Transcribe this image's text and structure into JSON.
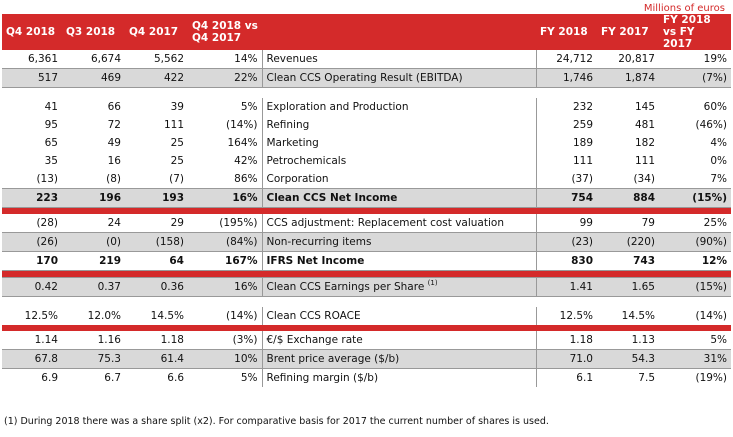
{
  "units_label": "Millions of euros",
  "headers": {
    "q4_2018": "Q4 2018",
    "q3_2018": "Q3 2018",
    "q4_2017": "Q4 2017",
    "q_var": "Q4 2018 vs Q4 2017",
    "label": "",
    "fy_2018": "FY 2018",
    "fy_2017": "FY 2017",
    "fy_var": "FY 2018 vs FY 2017"
  },
  "rows": [
    {
      "type": "data",
      "style": "plain",
      "q4_2018": "6,361",
      "q3_2018": "6,674",
      "q4_2017": "5,562",
      "q_var": "14%",
      "label": "Revenues",
      "fy_2018": "24,712",
      "fy_2017": "20,817",
      "fy_var": "19%"
    },
    {
      "type": "data",
      "style": "shaded",
      "q4_2018": "517",
      "q3_2018": "469",
      "q4_2017": "422",
      "q_var": "22%",
      "label": "Clean CCS Operating Result (EBITDA)",
      "fy_2018": "1,746",
      "fy_2017": "1,874",
      "fy_var": "(7%)"
    },
    {
      "type": "blank"
    },
    {
      "type": "data",
      "style": "plain",
      "q4_2018": "41",
      "q3_2018": "66",
      "q4_2017": "39",
      "q_var": "5%",
      "label": "Exploration and Production",
      "fy_2018": "232",
      "fy_2017": "145",
      "fy_var": "60%"
    },
    {
      "type": "data",
      "style": "plain",
      "q4_2018": "95",
      "q3_2018": "72",
      "q4_2017": "111",
      "q_var": "(14%)",
      "label": "Refining",
      "fy_2018": "259",
      "fy_2017": "481",
      "fy_var": "(46%)"
    },
    {
      "type": "data",
      "style": "plain",
      "q4_2018": "65",
      "q3_2018": "49",
      "q4_2017": "25",
      "q_var": "164%",
      "label": "Marketing",
      "fy_2018": "189",
      "fy_2017": "182",
      "fy_var": "4%"
    },
    {
      "type": "data",
      "style": "plain",
      "q4_2018": "35",
      "q3_2018": "16",
      "q4_2017": "25",
      "q_var": "42%",
      "label": "Petrochemicals",
      "fy_2018": "111",
      "fy_2017": "111",
      "fy_var": "0%"
    },
    {
      "type": "data",
      "style": "plain",
      "q4_2018": "(13)",
      "q3_2018": "(8)",
      "q4_2017": "(7)",
      "q_var": "86%",
      "label": "Corporation",
      "fy_2018": "(37)",
      "fy_2017": "(34)",
      "fy_var": "7%"
    },
    {
      "type": "data",
      "style": "shaded-bold",
      "q4_2018": "223",
      "q3_2018": "196",
      "q4_2017": "193",
      "q_var": "16%",
      "label": "Clean CCS Net Income",
      "fy_2018": "754",
      "fy_2017": "884",
      "fy_var": "(15%)"
    },
    {
      "type": "sep"
    },
    {
      "type": "data",
      "style": "plain",
      "q4_2018": "(28)",
      "q3_2018": "24",
      "q4_2017": "29",
      "q_var": "(195%)",
      "label": "CCS adjustment: Replacement cost valuation",
      "fy_2018": "99",
      "fy_2017": "79",
      "fy_var": "25%"
    },
    {
      "type": "data",
      "style": "shaded",
      "q4_2018": "(26)",
      "q3_2018": "(0)",
      "q4_2017": "(158)",
      "q_var": "(84%)",
      "label": "Non-recurring items",
      "fy_2018": "(23)",
      "fy_2017": "(220)",
      "fy_var": "(90%)"
    },
    {
      "type": "data",
      "style": "bold-rule",
      "q4_2018": "170",
      "q3_2018": "219",
      "q4_2017": "64",
      "q_var": "167%",
      "label": "IFRS Net Income",
      "fy_2018": "830",
      "fy_2017": "743",
      "fy_var": "12%"
    },
    {
      "type": "sep"
    },
    {
      "type": "data",
      "style": "shaded",
      "q4_2018": "0.42",
      "q3_2018": "0.37",
      "q4_2017": "0.36",
      "q_var": "16%",
      "label": "Clean CCS Earnings per Share",
      "label_sup": "(1)",
      "fy_2018": "1.41",
      "fy_2017": "1.65",
      "fy_var": "(15%)"
    },
    {
      "type": "blank"
    },
    {
      "type": "data",
      "style": "plain",
      "q4_2018": "12.5%",
      "q3_2018": "12.0%",
      "q4_2017": "14.5%",
      "q_var": "(14%)",
      "label": "Clean CCS ROACE",
      "fy_2018": "12.5%",
      "fy_2017": "14.5%",
      "fy_var": "(14%)"
    },
    {
      "type": "sep"
    },
    {
      "type": "data",
      "style": "plain",
      "q4_2018": "1.14",
      "q3_2018": "1.16",
      "q4_2017": "1.18",
      "q_var": "(3%)",
      "label": "€/$ Exchange rate",
      "fy_2018": "1.18",
      "fy_2017": "1.13",
      "fy_var": "5%"
    },
    {
      "type": "data",
      "style": "shaded",
      "q4_2018": "67.8",
      "q3_2018": "75.3",
      "q4_2017": "61.4",
      "q_var": "10%",
      "label": "Brent price average ($/b)",
      "fy_2018": "71.0",
      "fy_2017": "54.3",
      "fy_var": "31%"
    },
    {
      "type": "data",
      "style": "plain",
      "q4_2018": "6.9",
      "q3_2018": "6.7",
      "q4_2017": "6.6",
      "q_var": "5%",
      "label": "Refining margin ($/b)",
      "fy_2018": "6.1",
      "fy_2017": "7.5",
      "fy_var": "(19%)"
    }
  ],
  "footnote": "(1) During 2018 there was a share split (x2). For comparative basis for 2017 the current number of shares is used."
}
